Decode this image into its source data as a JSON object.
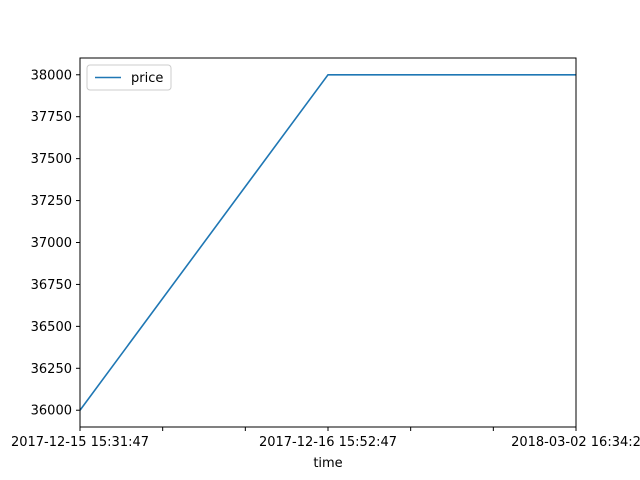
{
  "chart_data": {
    "type": "line",
    "title": "",
    "xlabel": "time",
    "ylabel": "",
    "x_categories": [
      "2017-12-15 15:31:47",
      "2017-12-16 15:52:47",
      "2018-03-02 16:34:2"
    ],
    "x_tick_labels": [
      "2017-12-15 15:31:47",
      "",
      "",
      "2017-12-16 15:52:47",
      "",
      "",
      "2018-03-02 16:34:2"
    ],
    "series": [
      {
        "name": "price",
        "color": "#1f77b4",
        "values": [
          36000,
          38000,
          38000
        ]
      }
    ],
    "ylim": [
      35900,
      38100
    ],
    "y_ticks": [
      36000,
      36250,
      36500,
      36750,
      37000,
      37250,
      37500,
      37750,
      38000
    ],
    "grid": false,
    "legend": "upper-left"
  }
}
